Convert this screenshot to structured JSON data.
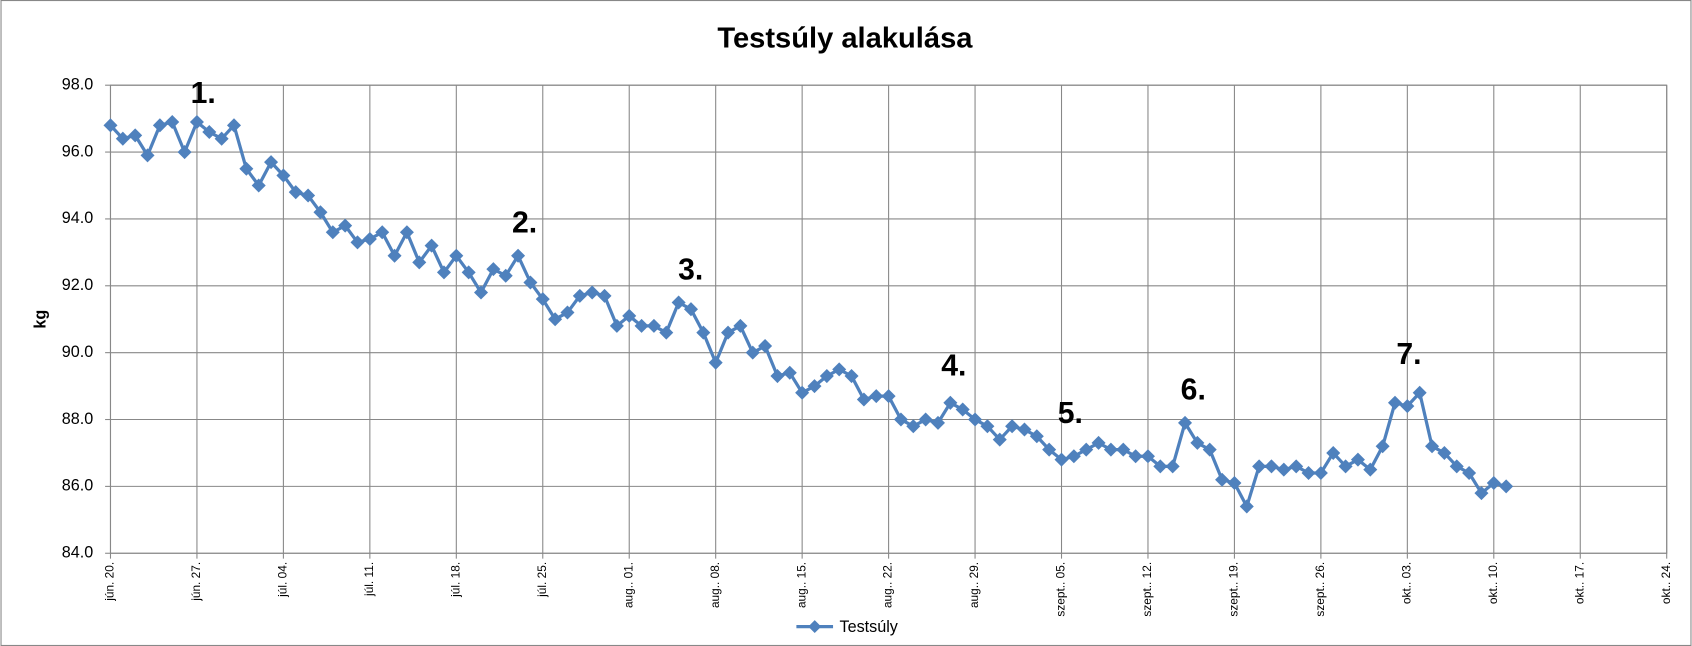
{
  "chart_data": {
    "type": "line",
    "title": "Testsúly alakulása",
    "y_label": "kg",
    "categories": [
      "jún. 20.",
      null,
      null,
      null,
      null,
      null,
      null,
      "jún. 27.",
      null,
      null,
      null,
      null,
      null,
      null,
      "júl. 04.",
      null,
      null,
      null,
      null,
      null,
      null,
      "júl. 11.",
      null,
      null,
      null,
      null,
      null,
      null,
      "júl. 18.",
      null,
      null,
      null,
      null,
      null,
      null,
      "júl. 25.",
      null,
      null,
      null,
      null,
      null,
      null,
      "aug.. 01.",
      null,
      null,
      null,
      null,
      null,
      null,
      "aug.. 08.",
      null,
      null,
      null,
      null,
      null,
      null,
      "aug.. 15.",
      null,
      null,
      null,
      null,
      null,
      null,
      "aug.. 22.",
      null,
      null,
      null,
      null,
      null,
      null,
      "aug.. 29.",
      null,
      null,
      null,
      null,
      null,
      null,
      "szept.. 05.",
      null,
      null,
      null,
      null,
      null,
      null,
      "szept.. 12.",
      null,
      null,
      null,
      null,
      null,
      null,
      "szept.. 19.",
      null,
      null,
      null,
      null,
      null,
      null,
      "szept.. 26.",
      null,
      null,
      null,
      null,
      null,
      null,
      "okt.. 03.",
      null,
      null,
      null,
      null,
      null,
      null,
      "okt.. 10.",
      null,
      null,
      null,
      null,
      null,
      null,
      "okt.. 17.",
      null,
      null,
      null,
      null,
      null,
      null,
      "okt.. 24."
    ],
    "series": [
      {
        "name": "Testsúly",
        "color": "#4f81bd",
        "values": [
          96.8,
          96.4,
          96.5,
          95.9,
          96.8,
          96.9,
          96.0,
          96.9,
          96.6,
          96.4,
          96.8,
          95.5,
          95.0,
          95.7,
          95.3,
          94.8,
          94.7,
          94.2,
          93.6,
          93.8,
          93.3,
          93.4,
          93.6,
          92.9,
          93.6,
          92.7,
          93.2,
          92.4,
          92.9,
          92.4,
          91.8,
          92.5,
          92.3,
          92.9,
          92.1,
          91.6,
          91.0,
          91.2,
          91.7,
          91.8,
          91.7,
          90.8,
          91.1,
          90.8,
          90.8,
          90.6,
          91.5,
          91.3,
          90.6,
          89.7,
          90.6,
          90.8,
          90.0,
          90.2,
          89.3,
          89.4,
          88.8,
          89.0,
          89.3,
          89.5,
          89.3,
          88.6,
          88.7,
          88.7,
          88.0,
          87.8,
          88.0,
          87.9,
          88.5,
          88.3,
          88.0,
          87.8,
          87.4,
          87.8,
          87.7,
          87.5,
          87.1,
          86.8,
          86.9,
          87.1,
          87.3,
          87.1,
          87.1,
          86.9,
          86.9,
          86.6,
          86.6,
          87.9,
          87.3,
          87.1,
          86.2,
          86.1,
          85.4,
          86.6,
          86.6,
          86.5,
          86.6,
          86.4,
          86.4,
          87.0,
          86.6,
          86.8,
          86.5,
          87.2,
          88.5,
          88.4,
          88.8,
          87.2,
          87.0,
          86.6,
          86.4,
          85.8,
          86.1,
          86.0,
          null,
          null,
          null,
          null,
          null,
          null,
          null,
          null,
          null,
          null,
          null,
          null,
          null
        ]
      }
    ],
    "ylim": [
      84,
      98
    ],
    "yticks": [
      {
        "value": 84,
        "label": "84.0"
      },
      {
        "value": 86,
        "label": "86.0"
      },
      {
        "value": 88,
        "label": "88.0"
      },
      {
        "value": 90,
        "label": "90.0"
      },
      {
        "value": 92,
        "label": "92.0"
      },
      {
        "value": 94,
        "label": "94.0"
      },
      {
        "value": 96,
        "label": "96.0"
      },
      {
        "value": 98,
        "label": "98.0"
      }
    ],
    "grid": true,
    "legend": "bottom",
    "annotations": [
      "1.",
      "2.",
      "3.",
      "4.",
      "5.",
      "6.",
      "7."
    ]
  }
}
